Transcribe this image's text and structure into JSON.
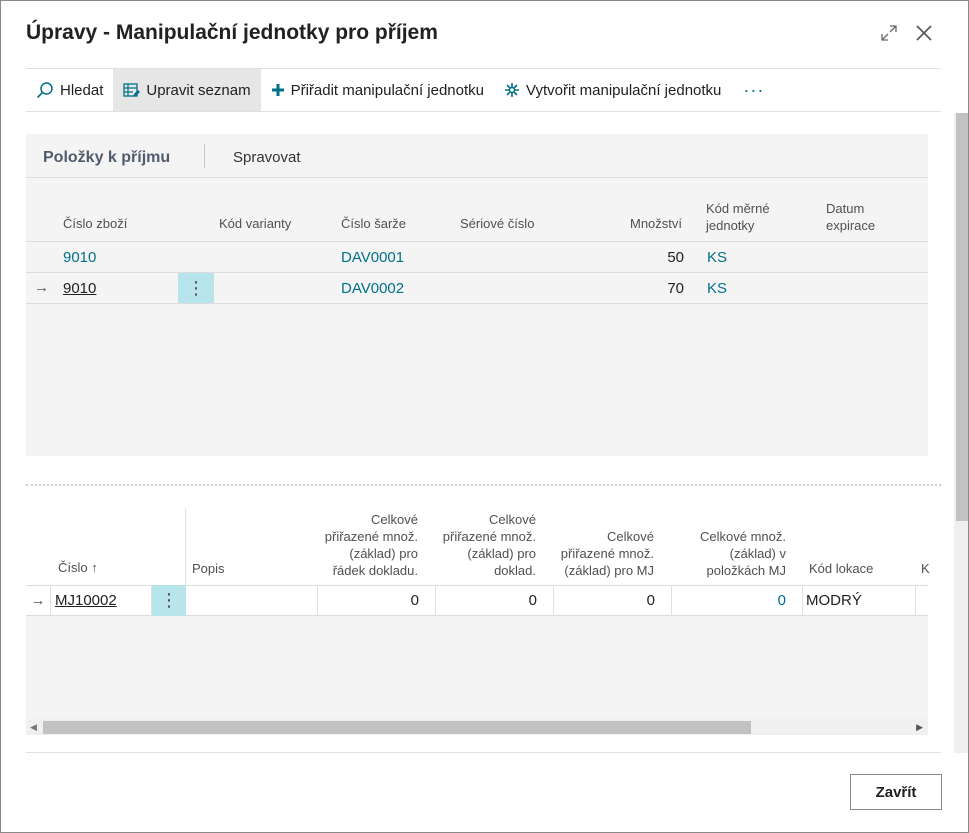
{
  "dialog": {
    "title": "Úpravy - Manipulační jednotky pro příjem"
  },
  "actions": {
    "search": "Hledat",
    "edit_list": "Upravit seznam",
    "assign": "Přiřadit manipulační jednotku",
    "create": "Vytvořit manipulační jednotku",
    "more": "···"
  },
  "lines_part": {
    "title": "Položky k příjmu",
    "manage": "Spravovat",
    "headers": {
      "item_no": "Číslo zboží",
      "variant": "Kód varianty",
      "lot": "Číslo šarže",
      "serial": "Sériové číslo",
      "qty": "Množství",
      "uom_line1": "Kód měrné",
      "uom_line2": "jednotky",
      "exp_line1": "Datum",
      "exp_line2": "expirace"
    },
    "rows": [
      {
        "item_no": "9010",
        "lot": "DAV0001",
        "qty": "50",
        "uom": "KS"
      },
      {
        "item_no": "9010",
        "lot": "DAV0002",
        "qty": "70",
        "uom": "KS"
      }
    ]
  },
  "hu_part": {
    "headers": {
      "no": "Číslo",
      "desc": "Popis",
      "c1": [
        "Celkové",
        "přiřazené množ.",
        "(základ) pro",
        "řádek dokladu."
      ],
      "c2": [
        "Celkové",
        "přiřazené množ.",
        "(základ) pro",
        "doklad."
      ],
      "c3": [
        "Celkové",
        "přiřazené množ.",
        "(základ) pro MJ"
      ],
      "c4": [
        "Celkové množ.",
        "(základ) v",
        "položkách MJ"
      ],
      "bin": "Kód lokace",
      "next": "K"
    },
    "row": {
      "no": "MJ10002",
      "desc": "",
      "c1": "0",
      "c2": "0",
      "c3": "0",
      "c4": "0",
      "bin": "MODRÝ"
    }
  },
  "footer": {
    "close": "Zavřít"
  }
}
